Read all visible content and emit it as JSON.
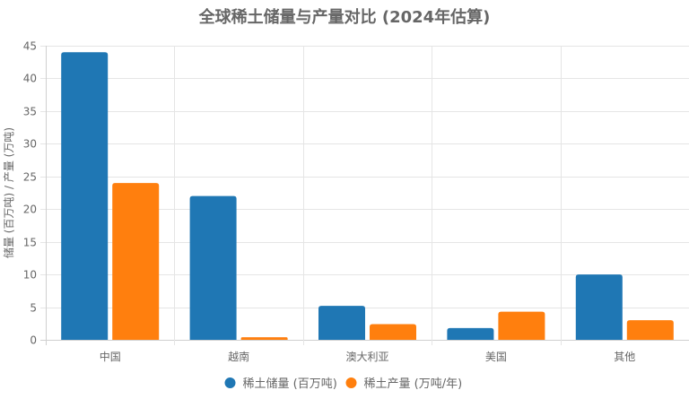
{
  "chart_data": {
    "type": "bar",
    "title": "全球稀土储量与产量对比 (2024年估算)",
    "categories": [
      "中国",
      "越南",
      "澳大利亚",
      "美国",
      "其他"
    ],
    "series": [
      {
        "name": "稀土储量 (百万吨)",
        "values": [
          44,
          22,
          5.2,
          1.8,
          10
        ],
        "color": "#1f77b4"
      },
      {
        "name": "稀土产量 (万吨/年)",
        "values": [
          24,
          0.4,
          2.4,
          4.3,
          3
        ],
        "color": "#ff7f0e"
      }
    ],
    "xlabel": "",
    "ylabel": "储量 (百万吨) / 产量 (万吨)",
    "ylim": [
      0,
      45
    ],
    "yticks": [
      0,
      5,
      10,
      15,
      20,
      25,
      30,
      35,
      40,
      45
    ],
    "grid": true,
    "legend_position": "bottom"
  }
}
